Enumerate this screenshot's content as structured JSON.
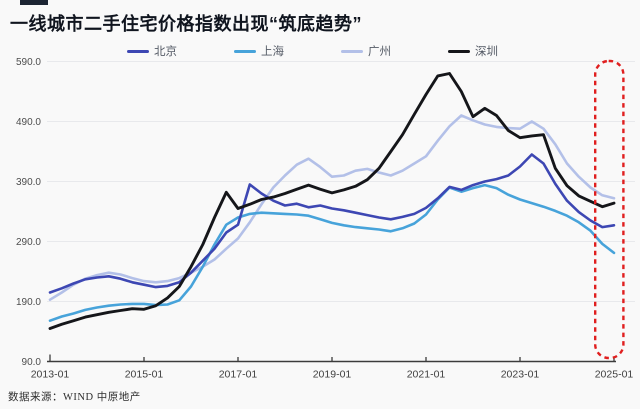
{
  "title": "一线城市二手住宅价格指数出现“筑底趋势”",
  "source": "数据来源：WIND 中原地产",
  "colors": {
    "background": "#f9f9f9",
    "title_text": "#10151f",
    "decorative_bar": "#1c2533",
    "gridline": "#e8e9ec",
    "axis": "#3c3c3c",
    "axis_tick_label": "#4d4d4d",
    "legend_text": "#555b66",
    "highlight_box": "#e01f1f",
    "beijing": "#3d47b3",
    "shanghai": "#47a3da",
    "guangzhou": "#b3c0e8",
    "shenzhen": "#15161a"
  },
  "legend": [
    {
      "label": "北京",
      "color": "#3d47b3"
    },
    {
      "label": "上海",
      "color": "#47a3da"
    },
    {
      "label": "广州",
      "color": "#b3c0e8"
    },
    {
      "label": "深圳",
      "color": "#15161a"
    }
  ],
  "chart_data": {
    "type": "line",
    "title": "一线城市二手住宅价格指数出现“筑底趋势”",
    "xlabel": "",
    "ylabel": "",
    "x_unit": "year (decimal, quarterly samples)",
    "x": [
      2013,
      2013.25,
      2013.5,
      2013.75,
      2014,
      2014.25,
      2014.5,
      2014.75,
      2015,
      2015.25,
      2015.5,
      2015.75,
      2016,
      2016.25,
      2016.5,
      2016.75,
      2017,
      2017.25,
      2017.5,
      2017.75,
      2018,
      2018.25,
      2018.5,
      2018.75,
      2019,
      2019.25,
      2019.5,
      2019.75,
      2020,
      2020.25,
      2020.5,
      2020.75,
      2021,
      2021.25,
      2021.5,
      2021.75,
      2022,
      2022.25,
      2022.5,
      2022.75,
      2023,
      2023.25,
      2023.5,
      2023.75,
      2024,
      2024.25,
      2024.5,
      2024.75,
      2025
    ],
    "x_tick_labels": [
      "2013-01",
      "2015-01",
      "2017-01",
      "2019-01",
      "2021-01",
      "2023-01",
      "2025-01"
    ],
    "y_ticks": [
      90,
      190,
      290,
      390,
      490,
      590
    ],
    "y_tick_labels": [
      "90.0",
      "190.0",
      "290.0",
      "390.0",
      "490.0",
      "590.0"
    ],
    "ylim": [
      90,
      610
    ],
    "grid": "horizontal",
    "legend_position": "top",
    "series": [
      {
        "name": "北京",
        "color": "#3d47b3",
        "values": [
          205,
          212,
          220,
          227,
          230,
          232,
          228,
          222,
          218,
          214,
          216,
          222,
          238,
          258,
          278,
          305,
          318,
          385,
          370,
          358,
          350,
          353,
          347,
          350,
          345,
          342,
          338,
          334,
          330,
          327,
          331,
          336,
          346,
          362,
          381,
          376,
          384,
          390,
          394,
          400,
          415,
          435,
          420,
          386,
          358,
          339,
          325,
          314,
          317
        ]
      },
      {
        "name": "上海",
        "color": "#47a3da",
        "values": [
          158,
          165,
          170,
          176,
          180,
          183,
          185,
          186,
          186,
          184,
          185,
          192,
          215,
          248,
          285,
          318,
          330,
          336,
          338,
          337,
          336,
          335,
          333,
          327,
          321,
          317,
          314,
          312,
          310,
          307,
          312,
          320,
          335,
          360,
          380,
          373,
          379,
          384,
          379,
          368,
          360,
          354,
          348,
          341,
          333,
          322,
          308,
          286,
          271
        ]
      },
      {
        "name": "广州",
        "color": "#b3c0e8",
        "values": [
          193,
          205,
          218,
          228,
          234,
          238,
          235,
          229,
          224,
          222,
          224,
          229,
          238,
          248,
          260,
          278,
          295,
          322,
          352,
          380,
          400,
          418,
          428,
          414,
          398,
          400,
          408,
          411,
          405,
          400,
          408,
          420,
          432,
          458,
          482,
          500,
          492,
          485,
          481,
          479,
          478,
          490,
          478,
          452,
          420,
          398,
          380,
          367,
          362
        ]
      },
      {
        "name": "深圳",
        "color": "#15161a",
        "values": [
          145,
          152,
          158,
          164,
          168,
          172,
          175,
          178,
          177,
          183,
          196,
          215,
          248,
          285,
          330,
          372,
          345,
          352,
          360,
          364,
          370,
          377,
          384,
          377,
          371,
          376,
          382,
          393,
          412,
          440,
          468,
          502,
          535,
          566,
          570,
          540,
          498,
          512,
          500,
          475,
          463,
          466,
          468,
          412,
          383,
          366,
          357,
          348,
          354
        ]
      }
    ],
    "annotations": [
      {
        "type": "dashed-rounded-box",
        "x_range": [
          2024.6,
          2025.2
        ],
        "y_range": [
          90,
          590
        ],
        "color": "#e01f1f"
      }
    ]
  }
}
